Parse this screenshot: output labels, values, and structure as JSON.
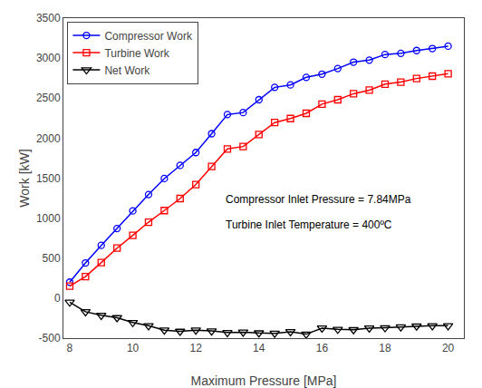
{
  "chart_data": {
    "type": "line",
    "x": [
      8.0,
      8.5,
      9.0,
      9.5,
      10.0,
      10.5,
      11.0,
      11.5,
      12.0,
      12.5,
      13.0,
      13.5,
      14.0,
      14.5,
      15.0,
      15.5,
      16.0,
      16.5,
      17.0,
      17.5,
      18.0,
      18.5,
      19.0,
      19.5,
      20.0
    ],
    "series": [
      {
        "name": "Compressor Work",
        "color": "#0000FF",
        "marker": "circle",
        "line_style": "solid",
        "values": [
          200,
          440,
          660,
          870,
          1090,
          1295,
          1495,
          1660,
          1820,
          2055,
          2295,
          2320,
          2480,
          2635,
          2665,
          2760,
          2800,
          2870,
          2950,
          2975,
          3045,
          3060,
          3095,
          3120,
          3150
        ]
      },
      {
        "name": "Turbine Work",
        "color": "#FF0000",
        "marker": "square",
        "line_style": "solid",
        "values": [
          150,
          270,
          445,
          625,
          785,
          950,
          1095,
          1245,
          1420,
          1645,
          1865,
          1895,
          2045,
          2195,
          2245,
          2310,
          2425,
          2480,
          2555,
          2600,
          2675,
          2700,
          2745,
          2775,
          2805
        ]
      },
      {
        "name": "Net Work",
        "color": "#000000",
        "marker": "triangle-down",
        "line_style": "solid",
        "values": [
          -50,
          -170,
          -215,
          -245,
          -305,
          -345,
          -400,
          -415,
          -400,
          -410,
          -430,
          -425,
          -435,
          -440,
          -420,
          -450,
          -375,
          -390,
          -395,
          -375,
          -370,
          -360,
          -350,
          -345,
          -345
        ]
      }
    ],
    "x_label": "Maximum Pressure [MPa]",
    "y_label": "Work [kW]",
    "annotations": [
      "Compressor Inlet Pressure = 7.84MPa",
      "Turbine Inlet Temperature = 400ºC"
    ],
    "xlim": [
      7.8,
      20.5
    ],
    "xticks": [
      8,
      10,
      12,
      14,
      16,
      18,
      20
    ],
    "ylim": [
      -500,
      3500
    ],
    "yticks": [
      -500,
      0,
      500,
      1000,
      1500,
      2000,
      2500,
      3000,
      3500
    ],
    "legend": "upper left",
    "grid": false
  }
}
